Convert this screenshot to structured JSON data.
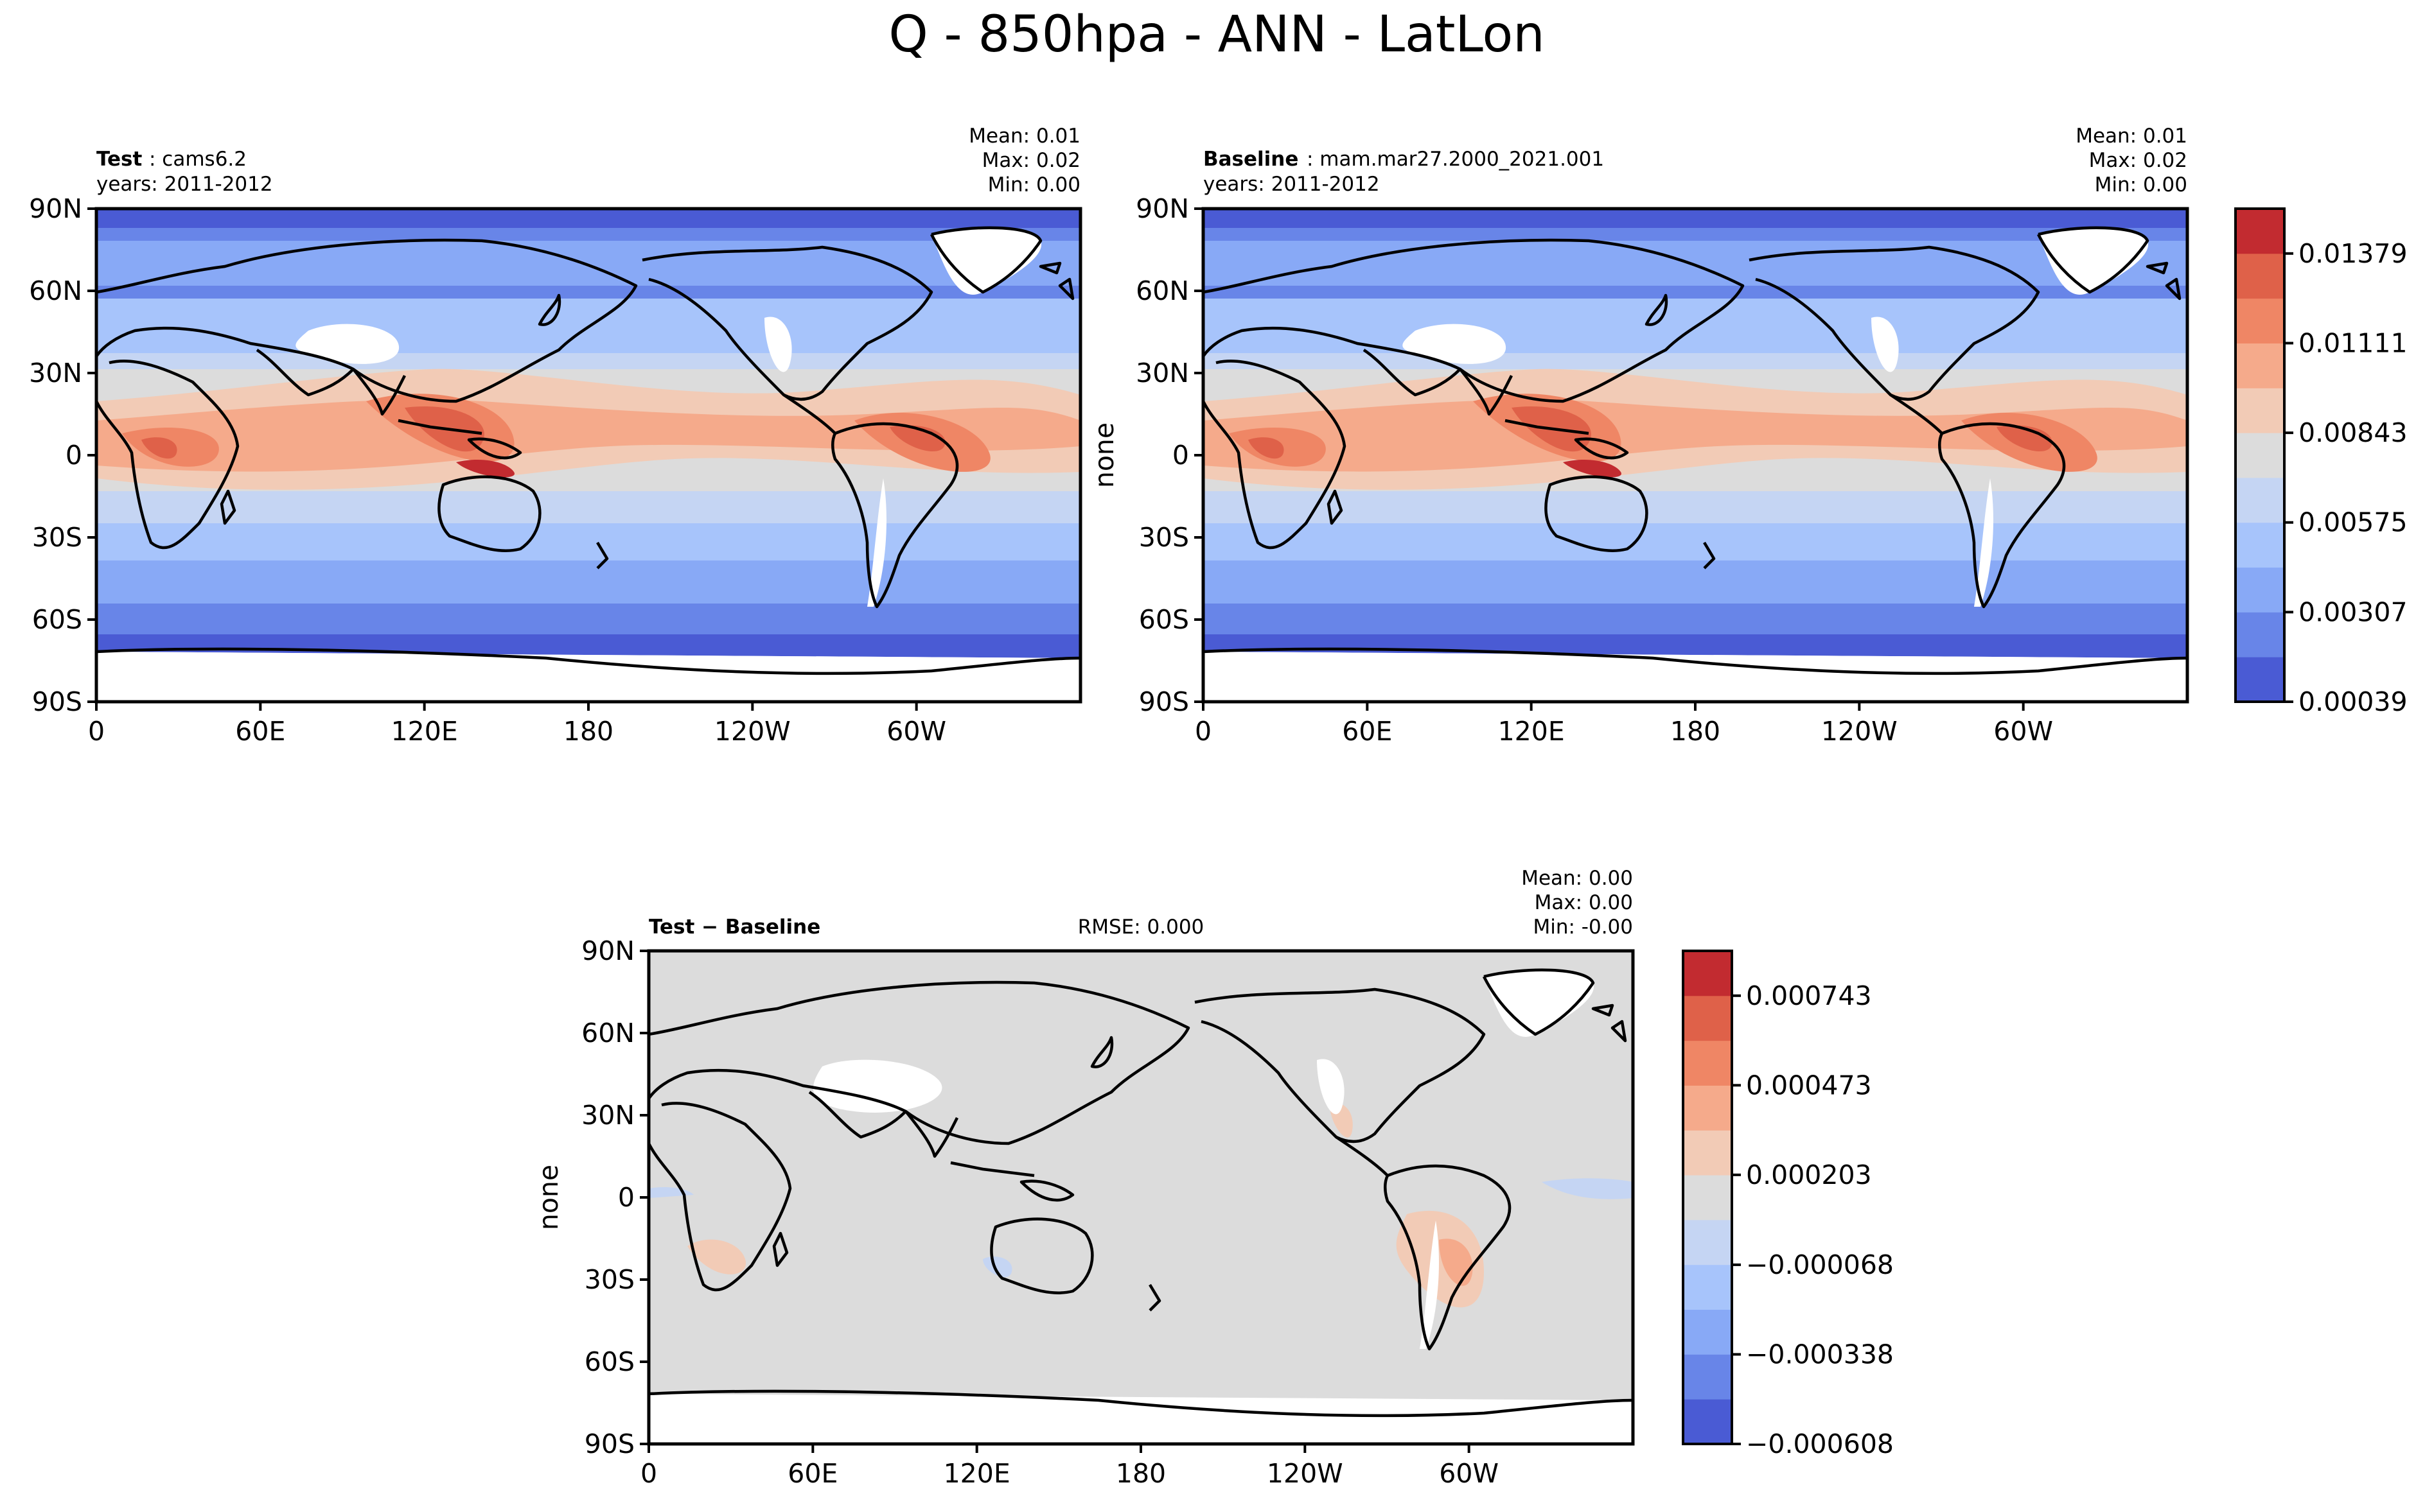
{
  "figure_title": "Q - 850hpa - ANN - LatLon",
  "colors": {
    "levels_blue_to_red": [
      "#4a5bd4",
      "#6885e8",
      "#88a9f6",
      "#a7c4fb",
      "#c5d5f3",
      "#dcdcdc",
      "#f2cbb6",
      "#f5aa8b",
      "#ef8665",
      "#df6149",
      "#c22b30"
    ],
    "land_mask": "#ffffff",
    "coastline": "#000000"
  },
  "panels": {
    "test": {
      "label_bold": "Test",
      "label_rest": " : cams6.2",
      "years": "years: 2011-2012",
      "stats": [
        "Mean:  0.01",
        "Max:  0.02",
        "Min:  0.00"
      ],
      "ylabel": ""
    },
    "baseline": {
      "label_bold": "Baseline",
      "label_rest": " : mam.mar27.2000_2021.001",
      "years": "years: 2011-2012",
      "stats": [
        "Mean:  0.01",
        "Max:  0.02",
        "Min:  0.00"
      ],
      "ylabel": "none"
    },
    "diff": {
      "label_bold": "Test − Baseline",
      "rmse": "RMSE: 0.000",
      "stats": [
        "Mean:  0.00",
        "Max:  0.00",
        "Min:  -0.00"
      ],
      "ylabel": "none"
    }
  },
  "colorbars": {
    "main": {
      "ticks": [
        "0.01379",
        "0.01111",
        "0.00843",
        "0.00575",
        "0.00307",
        "0.00039"
      ]
    },
    "diff": {
      "ticks": [
        "0.000743",
        "0.000473",
        "0.000203",
        "−0.000068",
        "−0.000338",
        "−0.000608"
      ]
    }
  },
  "chart_data": [
    {
      "type": "heatmap",
      "title": "Test : cams6.2",
      "subtitle": "years: 2011-2012",
      "x_ticks": [
        "0",
        "60E",
        "120E",
        "180",
        "120W",
        "60W"
      ],
      "y_ticks": [
        "90N",
        "60N",
        "30N",
        "0",
        "30S",
        "60S",
        "90S"
      ],
      "x_range": [
        0,
        360
      ],
      "y_range": [
        -90,
        90
      ],
      "colorbar_levels": [
        0.00039,
        0.00307,
        0.00575,
        0.00843,
        0.01111,
        0.01379
      ],
      "mean": 0.01,
      "max": 0.02,
      "min": 0.0
    },
    {
      "type": "heatmap",
      "title": "Baseline : mam.mar27.2000_2021.001",
      "subtitle": "years: 2011-2012",
      "ylabel": "none",
      "x_ticks": [
        "0",
        "60E",
        "120E",
        "180",
        "120W",
        "60W"
      ],
      "y_ticks": [
        "90N",
        "60N",
        "30N",
        "0",
        "30S",
        "60S",
        "90S"
      ],
      "x_range": [
        0,
        360
      ],
      "y_range": [
        -90,
        90
      ],
      "colorbar_levels": [
        0.00039,
        0.00307,
        0.00575,
        0.00843,
        0.01111,
        0.01379
      ],
      "mean": 0.01,
      "max": 0.02,
      "min": 0.0
    },
    {
      "type": "heatmap",
      "title": "Test − Baseline",
      "ylabel": "none",
      "x_ticks": [
        "0",
        "60E",
        "120E",
        "180",
        "120W",
        "60W"
      ],
      "y_ticks": [
        "90N",
        "60N",
        "30N",
        "0",
        "30S",
        "60S",
        "90S"
      ],
      "x_range": [
        0,
        360
      ],
      "y_range": [
        -90,
        90
      ],
      "colorbar_levels": [
        -0.000608,
        -0.000338,
        -6.8e-05,
        0.000203,
        0.000473,
        0.000743
      ],
      "rmse": 0.0,
      "mean": 0.0,
      "max": 0.0,
      "min": -0.0
    }
  ]
}
